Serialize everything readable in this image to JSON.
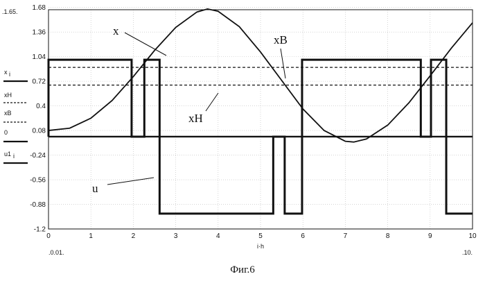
{
  "chart_data": {
    "type": "line",
    "caption": "Фиг.6",
    "xlabel": "i·h",
    "xlim": [
      0,
      10
    ],
    "ylim": [
      -1.2,
      1.65
    ],
    "x_range_labels": {
      "min": ".0.01.",
      "max": ".10."
    },
    "y_range_label_top": ".1.65.",
    "x_ticks": [
      "0",
      "1",
      "2",
      "3",
      "4",
      "5",
      "6",
      "7",
      "8",
      "9",
      "10"
    ],
    "y_ticks": [
      "1.68",
      "1.36",
      "1.04",
      "0.72",
      "0.4",
      "0.08",
      "-0.24",
      "-0.56",
      "-0.88",
      "-1.2"
    ],
    "legend_left": [
      "x",
      "xH",
      "xB",
      "0",
      "u1"
    ],
    "legend_subscripts": {
      "x": "i",
      "u1": "i"
    },
    "annotations": {
      "x": "x",
      "xB": "xB",
      "xH": "xH",
      "u": "u"
    },
    "series": [
      {
        "name": "x",
        "style": "solid",
        "x": [
          0,
          0.5,
          1,
          1.5,
          2,
          2.5,
          3,
          3.5,
          3.75,
          4,
          4.5,
          5,
          5.5,
          6,
          6.5,
          7,
          7.2,
          7.5,
          8,
          8.5,
          9,
          9.5,
          10
        ],
        "y": [
          0.08,
          0.11,
          0.24,
          0.47,
          0.78,
          1.12,
          1.42,
          1.62,
          1.66,
          1.63,
          1.43,
          1.1,
          0.73,
          0.36,
          0.08,
          -0.06,
          -0.07,
          -0.03,
          0.15,
          0.44,
          0.79,
          1.15,
          1.48
        ]
      },
      {
        "name": "xB",
        "style": "dashed",
        "x": [
          0,
          10
        ],
        "y": [
          0.9,
          0.9
        ]
      },
      {
        "name": "xH",
        "style": "dashed",
        "x": [
          0,
          10
        ],
        "y": [
          0.67,
          0.67
        ]
      },
      {
        "name": "0",
        "style": "solid",
        "x": [
          0,
          10
        ],
        "y": [
          0,
          0
        ]
      },
      {
        "name": "u",
        "style": "step",
        "points": [
          [
            0,
            0
          ],
          [
            0,
            1
          ],
          [
            1.96,
            1
          ],
          [
            1.96,
            0
          ],
          [
            2.26,
            0
          ],
          [
            2.26,
            1
          ],
          [
            2.62,
            1
          ],
          [
            2.62,
            -1
          ],
          [
            5.3,
            -1
          ],
          [
            5.3,
            0
          ],
          [
            5.57,
            0
          ],
          [
            5.57,
            -1
          ],
          [
            5.98,
            -1
          ],
          [
            5.98,
            1
          ],
          [
            8.78,
            1
          ],
          [
            8.78,
            0
          ],
          [
            9.02,
            0
          ],
          [
            9.02,
            1
          ],
          [
            9.38,
            1
          ],
          [
            9.38,
            -1
          ],
          [
            10,
            -1
          ]
        ]
      }
    ]
  }
}
